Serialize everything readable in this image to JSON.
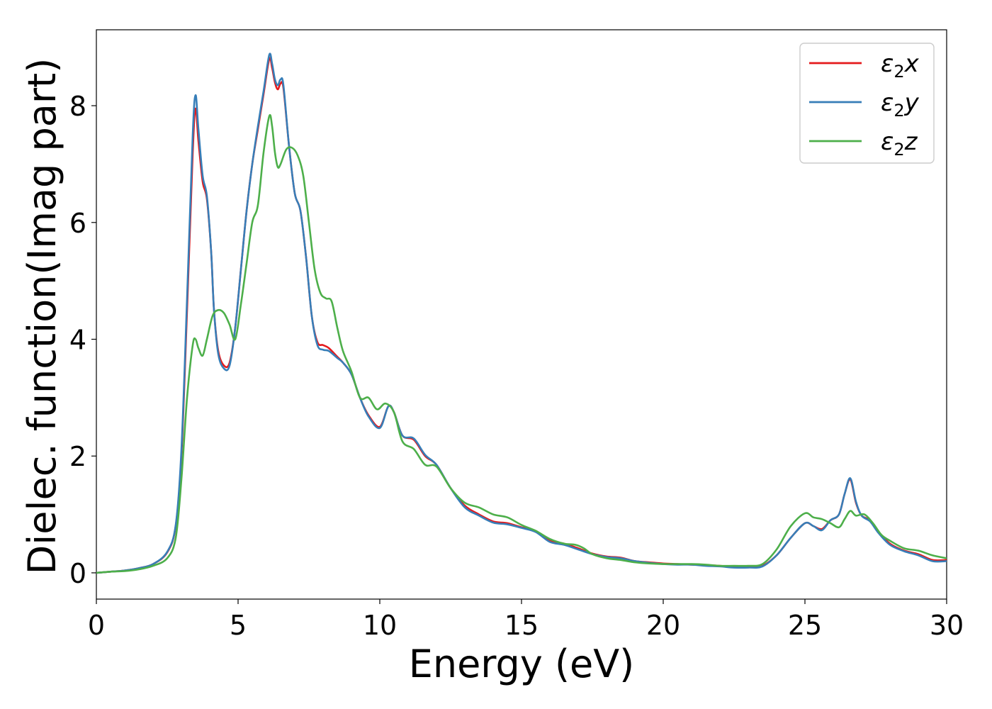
{
  "chart_data": {
    "type": "line",
    "title": "",
    "xlabel": "Energy (eV)",
    "ylabel": "Dielec. function(Imag part)",
    "xlim": [
      0,
      30
    ],
    "ylim": [
      -0.45,
      9.3
    ],
    "xticks": [
      0,
      5,
      10,
      15,
      20,
      25,
      30
    ],
    "yticks": [
      0,
      2,
      4,
      6,
      8
    ],
    "grid": false,
    "legend": "top-right",
    "series": [
      {
        "name": "ε₂x",
        "label_main": "ε",
        "label_sub": "2",
        "label_axis": "x",
        "color": "#e41a1c",
        "points": [
          [
            0,
            0
          ],
          [
            0.5,
            0.02
          ],
          [
            1,
            0.04
          ],
          [
            1.5,
            0.08
          ],
          [
            2,
            0.15
          ],
          [
            2.5,
            0.35
          ],
          [
            2.8,
            0.8
          ],
          [
            3.0,
            2.0
          ],
          [
            3.2,
            4.5
          ],
          [
            3.4,
            7.2
          ],
          [
            3.5,
            7.95
          ],
          [
            3.6,
            7.4
          ],
          [
            3.75,
            6.7
          ],
          [
            3.9,
            6.4
          ],
          [
            4.05,
            5.5
          ],
          [
            4.15,
            4.5
          ],
          [
            4.3,
            3.8
          ],
          [
            4.5,
            3.55
          ],
          [
            4.7,
            3.6
          ],
          [
            4.9,
            4.2
          ],
          [
            5.1,
            5.2
          ],
          [
            5.3,
            6.2
          ],
          [
            5.5,
            7.0
          ],
          [
            5.7,
            7.6
          ],
          [
            5.9,
            8.2
          ],
          [
            6.1,
            8.8
          ],
          [
            6.2,
            8.65
          ],
          [
            6.3,
            8.4
          ],
          [
            6.4,
            8.28
          ],
          [
            6.5,
            8.38
          ],
          [
            6.6,
            8.3
          ],
          [
            6.8,
            7.3
          ],
          [
            7.0,
            6.5
          ],
          [
            7.2,
            6.2
          ],
          [
            7.4,
            5.4
          ],
          [
            7.6,
            4.4
          ],
          [
            7.8,
            3.95
          ],
          [
            8.0,
            3.9
          ],
          [
            8.2,
            3.85
          ],
          [
            8.5,
            3.7
          ],
          [
            8.7,
            3.6
          ],
          [
            9.0,
            3.4
          ],
          [
            9.3,
            3.0
          ],
          [
            9.6,
            2.7
          ],
          [
            10.0,
            2.5
          ],
          [
            10.3,
            2.85
          ],
          [
            10.5,
            2.75
          ],
          [
            10.8,
            2.35
          ],
          [
            11.2,
            2.28
          ],
          [
            11.6,
            2.0
          ],
          [
            12.0,
            1.85
          ],
          [
            12.5,
            1.45
          ],
          [
            13.0,
            1.15
          ],
          [
            13.5,
            1.0
          ],
          [
            14.0,
            0.88
          ],
          [
            14.5,
            0.85
          ],
          [
            15.0,
            0.78
          ],
          [
            15.5,
            0.72
          ],
          [
            16.0,
            0.55
          ],
          [
            16.5,
            0.5
          ],
          [
            17.0,
            0.42
          ],
          [
            17.5,
            0.33
          ],
          [
            18.0,
            0.28
          ],
          [
            18.5,
            0.26
          ],
          [
            19.0,
            0.2
          ],
          [
            19.5,
            0.18
          ],
          [
            20.0,
            0.16
          ],
          [
            20.5,
            0.15
          ],
          [
            21.0,
            0.14
          ],
          [
            21.5,
            0.13
          ],
          [
            22.0,
            0.12
          ],
          [
            22.5,
            0.1
          ],
          [
            23.0,
            0.1
          ],
          [
            23.5,
            0.12
          ],
          [
            24.0,
            0.3
          ],
          [
            24.5,
            0.6
          ],
          [
            25.0,
            0.85
          ],
          [
            25.3,
            0.8
          ],
          [
            25.6,
            0.75
          ],
          [
            25.9,
            0.9
          ],
          [
            26.2,
            1.0
          ],
          [
            26.4,
            1.35
          ],
          [
            26.6,
            1.6
          ],
          [
            26.8,
            1.2
          ],
          [
            27.0,
            0.98
          ],
          [
            27.3,
            0.9
          ],
          [
            27.6,
            0.7
          ],
          [
            28.0,
            0.5
          ],
          [
            28.5,
            0.38
          ],
          [
            29.0,
            0.32
          ],
          [
            29.5,
            0.22
          ],
          [
            30.0,
            0.22
          ]
        ]
      },
      {
        "name": "ε₂y",
        "label_main": "ε",
        "label_sub": "2",
        "label_axis": "y",
        "color": "#377eb8",
        "points": [
          [
            0,
            0
          ],
          [
            0.5,
            0.02
          ],
          [
            1,
            0.04
          ],
          [
            1.5,
            0.08
          ],
          [
            2,
            0.15
          ],
          [
            2.5,
            0.36
          ],
          [
            2.8,
            0.82
          ],
          [
            3.0,
            2.1
          ],
          [
            3.2,
            4.7
          ],
          [
            3.4,
            7.5
          ],
          [
            3.5,
            8.18
          ],
          [
            3.6,
            7.6
          ],
          [
            3.75,
            6.8
          ],
          [
            3.9,
            6.45
          ],
          [
            4.05,
            5.5
          ],
          [
            4.15,
            4.5
          ],
          [
            4.3,
            3.75
          ],
          [
            4.5,
            3.5
          ],
          [
            4.7,
            3.55
          ],
          [
            4.9,
            4.2
          ],
          [
            5.1,
            5.2
          ],
          [
            5.3,
            6.2
          ],
          [
            5.5,
            7.0
          ],
          [
            5.7,
            7.65
          ],
          [
            5.9,
            8.25
          ],
          [
            6.1,
            8.87
          ],
          [
            6.2,
            8.72
          ],
          [
            6.3,
            8.45
          ],
          [
            6.4,
            8.35
          ],
          [
            6.5,
            8.45
          ],
          [
            6.6,
            8.35
          ],
          [
            6.8,
            7.3
          ],
          [
            7.0,
            6.5
          ],
          [
            7.2,
            6.2
          ],
          [
            7.4,
            5.4
          ],
          [
            7.6,
            4.4
          ],
          [
            7.8,
            3.9
          ],
          [
            8.0,
            3.82
          ],
          [
            8.2,
            3.8
          ],
          [
            8.5,
            3.68
          ],
          [
            8.7,
            3.6
          ],
          [
            9.0,
            3.4
          ],
          [
            9.3,
            3.0
          ],
          [
            9.6,
            2.68
          ],
          [
            10.0,
            2.48
          ],
          [
            10.3,
            2.85
          ],
          [
            10.5,
            2.75
          ],
          [
            10.8,
            2.35
          ],
          [
            11.2,
            2.3
          ],
          [
            11.6,
            2.02
          ],
          [
            12.0,
            1.85
          ],
          [
            12.5,
            1.45
          ],
          [
            13.0,
            1.12
          ],
          [
            13.5,
            0.98
          ],
          [
            14.0,
            0.86
          ],
          [
            14.5,
            0.83
          ],
          [
            15.0,
            0.77
          ],
          [
            15.5,
            0.7
          ],
          [
            16.0,
            0.53
          ],
          [
            16.5,
            0.48
          ],
          [
            17.0,
            0.4
          ],
          [
            17.5,
            0.32
          ],
          [
            18.0,
            0.27
          ],
          [
            18.5,
            0.25
          ],
          [
            19.0,
            0.2
          ],
          [
            19.5,
            0.17
          ],
          [
            20.0,
            0.15
          ],
          [
            20.5,
            0.14
          ],
          [
            21.0,
            0.14
          ],
          [
            21.5,
            0.12
          ],
          [
            22.0,
            0.11
          ],
          [
            22.5,
            0.09
          ],
          [
            23.0,
            0.09
          ],
          [
            23.5,
            0.11
          ],
          [
            24.0,
            0.3
          ],
          [
            24.5,
            0.6
          ],
          [
            25.0,
            0.85
          ],
          [
            25.3,
            0.8
          ],
          [
            25.6,
            0.73
          ],
          [
            25.9,
            0.9
          ],
          [
            26.2,
            1.0
          ],
          [
            26.4,
            1.35
          ],
          [
            26.6,
            1.62
          ],
          [
            26.8,
            1.22
          ],
          [
            27.0,
            0.98
          ],
          [
            27.3,
            0.88
          ],
          [
            27.6,
            0.68
          ],
          [
            28.0,
            0.48
          ],
          [
            28.5,
            0.37
          ],
          [
            29.0,
            0.3
          ],
          [
            29.5,
            0.2
          ],
          [
            30.0,
            0.2
          ]
        ]
      },
      {
        "name": "ε₂z",
        "label_main": "ε",
        "label_sub": "2",
        "label_axis": "z",
        "color": "#4daf4a",
        "points": [
          [
            0,
            0
          ],
          [
            0.5,
            0.02
          ],
          [
            1,
            0.03
          ],
          [
            1.5,
            0.06
          ],
          [
            2,
            0.12
          ],
          [
            2.5,
            0.25
          ],
          [
            2.8,
            0.6
          ],
          [
            3.0,
            1.6
          ],
          [
            3.2,
            3.0
          ],
          [
            3.4,
            3.9
          ],
          [
            3.5,
            4.0
          ],
          [
            3.6,
            3.85
          ],
          [
            3.75,
            3.72
          ],
          [
            3.9,
            4.0
          ],
          [
            4.1,
            4.4
          ],
          [
            4.3,
            4.5
          ],
          [
            4.5,
            4.45
          ],
          [
            4.7,
            4.25
          ],
          [
            4.9,
            4.0
          ],
          [
            5.1,
            4.6
          ],
          [
            5.3,
            5.3
          ],
          [
            5.5,
            6.0
          ],
          [
            5.7,
            6.3
          ],
          [
            5.9,
            7.2
          ],
          [
            6.1,
            7.82
          ],
          [
            6.2,
            7.65
          ],
          [
            6.3,
            7.2
          ],
          [
            6.4,
            6.95
          ],
          [
            6.5,
            7.0
          ],
          [
            6.7,
            7.25
          ],
          [
            6.9,
            7.28
          ],
          [
            7.1,
            7.15
          ],
          [
            7.3,
            6.8
          ],
          [
            7.5,
            6.0
          ],
          [
            7.7,
            5.2
          ],
          [
            7.9,
            4.8
          ],
          [
            8.1,
            4.7
          ],
          [
            8.3,
            4.65
          ],
          [
            8.5,
            4.2
          ],
          [
            8.7,
            3.8
          ],
          [
            9.0,
            3.45
          ],
          [
            9.3,
            3.0
          ],
          [
            9.6,
            3.0
          ],
          [
            9.9,
            2.8
          ],
          [
            10.2,
            2.9
          ],
          [
            10.5,
            2.75
          ],
          [
            10.8,
            2.25
          ],
          [
            11.2,
            2.12
          ],
          [
            11.6,
            1.85
          ],
          [
            12.0,
            1.82
          ],
          [
            12.5,
            1.45
          ],
          [
            13.0,
            1.2
          ],
          [
            13.5,
            1.12
          ],
          [
            14.0,
            1.0
          ],
          [
            14.5,
            0.95
          ],
          [
            15.0,
            0.82
          ],
          [
            15.5,
            0.72
          ],
          [
            16.0,
            0.58
          ],
          [
            16.5,
            0.5
          ],
          [
            16.9,
            0.48
          ],
          [
            17.2,
            0.42
          ],
          [
            17.5,
            0.32
          ],
          [
            18.0,
            0.25
          ],
          [
            18.5,
            0.22
          ],
          [
            19.0,
            0.18
          ],
          [
            19.5,
            0.16
          ],
          [
            20.0,
            0.15
          ],
          [
            20.5,
            0.15
          ],
          [
            21.0,
            0.15
          ],
          [
            21.5,
            0.14
          ],
          [
            22.0,
            0.12
          ],
          [
            22.5,
            0.12
          ],
          [
            23.0,
            0.12
          ],
          [
            23.5,
            0.15
          ],
          [
            24.0,
            0.4
          ],
          [
            24.5,
            0.8
          ],
          [
            25.0,
            1.02
          ],
          [
            25.3,
            0.95
          ],
          [
            25.6,
            0.92
          ],
          [
            25.9,
            0.85
          ],
          [
            26.2,
            0.78
          ],
          [
            26.4,
            0.92
          ],
          [
            26.6,
            1.06
          ],
          [
            26.8,
            0.98
          ],
          [
            27.1,
            1.0
          ],
          [
            27.4,
            0.85
          ],
          [
            27.7,
            0.65
          ],
          [
            28.0,
            0.55
          ],
          [
            28.5,
            0.42
          ],
          [
            29.0,
            0.38
          ],
          [
            29.5,
            0.3
          ],
          [
            30.0,
            0.25
          ]
        ]
      }
    ]
  }
}
